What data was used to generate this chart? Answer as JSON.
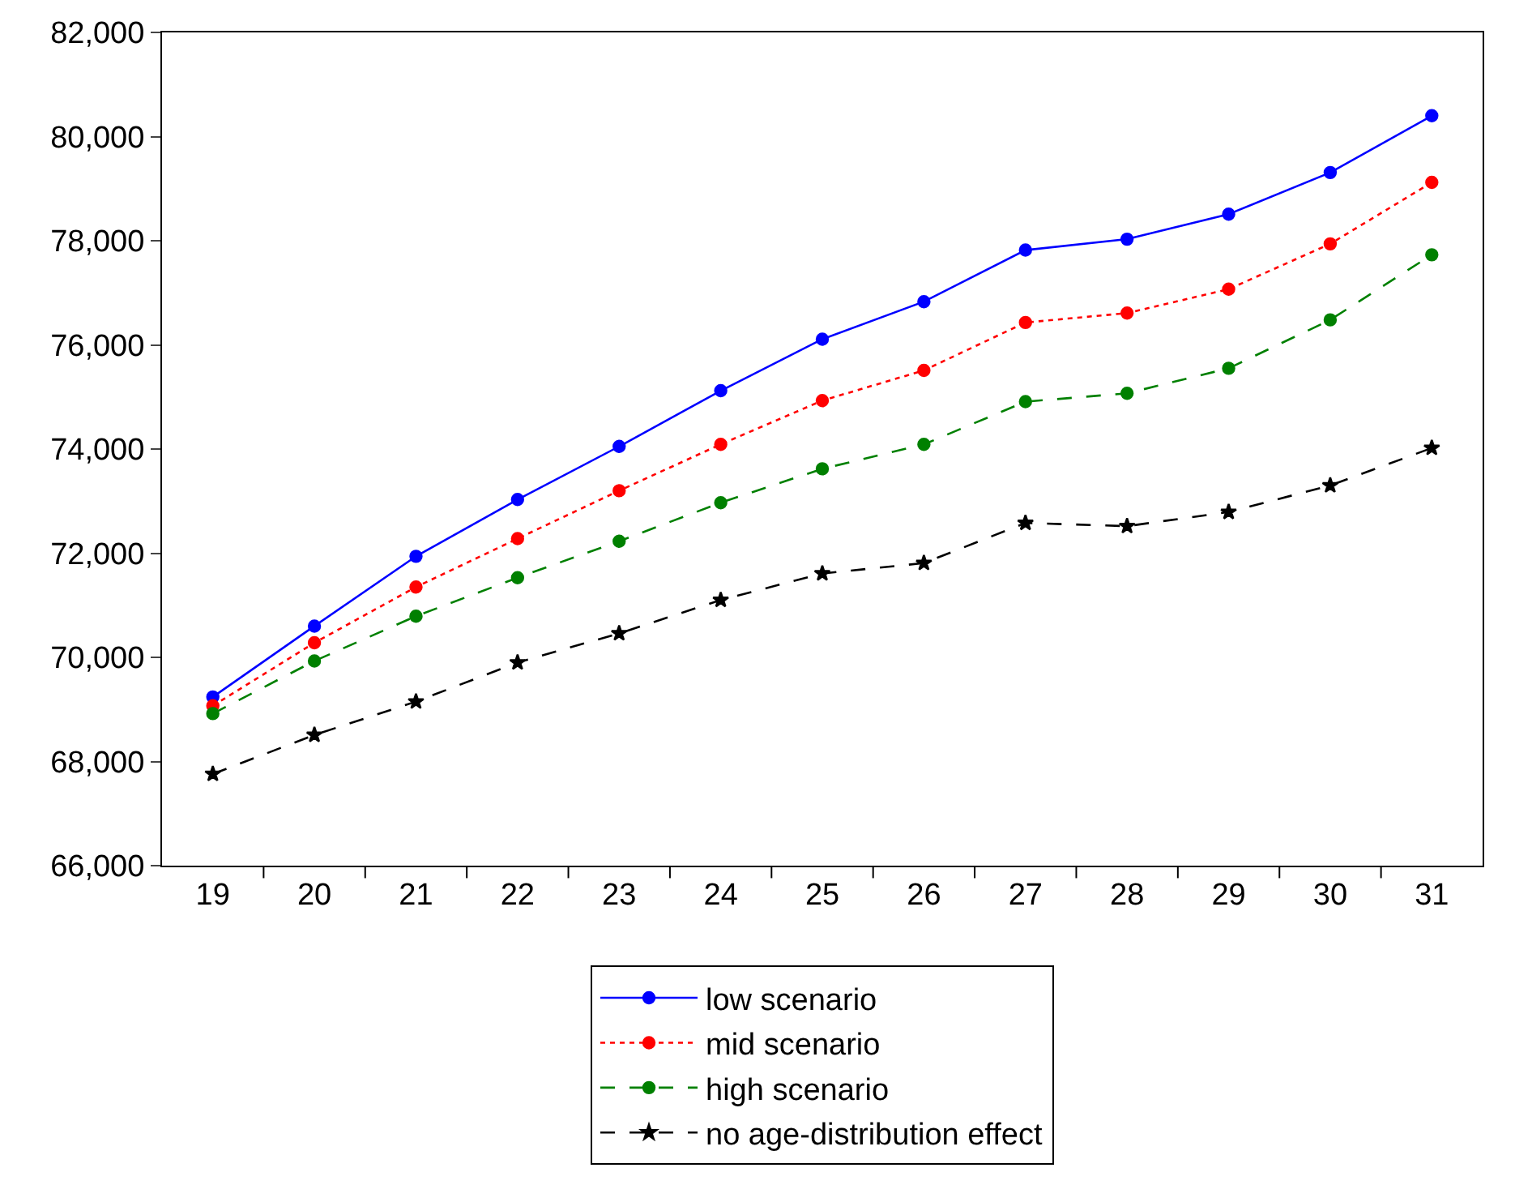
{
  "chart_data": {
    "type": "line",
    "categories": [
      "19",
      "20",
      "21",
      "22",
      "23",
      "24",
      "25",
      "26",
      "27",
      "28",
      "29",
      "30",
      "31"
    ],
    "ylim": [
      66000,
      82000
    ],
    "yticks": [
      {
        "value": 66000,
        "label": "66,000"
      },
      {
        "value": 68000,
        "label": "68,000"
      },
      {
        "value": 70000,
        "label": "70,000"
      },
      {
        "value": 72000,
        "label": "72,000"
      },
      {
        "value": 74000,
        "label": "74,000"
      },
      {
        "value": 76000,
        "label": "76,000"
      },
      {
        "value": 78000,
        "label": "78,000"
      },
      {
        "value": 80000,
        "label": "80,000"
      },
      {
        "value": 82000,
        "label": "82,000"
      }
    ],
    "legend": "bottom",
    "series": [
      {
        "name": "low scenario",
        "color": "#0000ff",
        "marker": "circle",
        "line_style": "solid",
        "values": [
          69240,
          70600,
          71940,
          73030,
          74050,
          75120,
          76110,
          76830,
          77820,
          78030,
          78510,
          79310,
          80400
        ]
      },
      {
        "name": "mid scenario",
        "color": "#ff0000",
        "marker": "circle",
        "line_style": "dotted",
        "values": [
          69070,
          70280,
          71350,
          72280,
          73200,
          74090,
          74930,
          75510,
          76430,
          76610,
          77070,
          77940,
          79120
        ]
      },
      {
        "name": "high scenario",
        "color": "#008000",
        "marker": "circle",
        "line_style": "dashed",
        "values": [
          68920,
          69930,
          70790,
          71530,
          72230,
          72970,
          73620,
          74090,
          74910,
          75070,
          75550,
          76480,
          77730
        ]
      },
      {
        "name": "no age-distribution effect",
        "color": "#000000",
        "marker": "star",
        "line_style": "dashed",
        "values": [
          67760,
          68510,
          69150,
          69900,
          70460,
          71100,
          71610,
          71810,
          72580,
          72520,
          72790,
          73300,
          74020
        ]
      }
    ]
  }
}
